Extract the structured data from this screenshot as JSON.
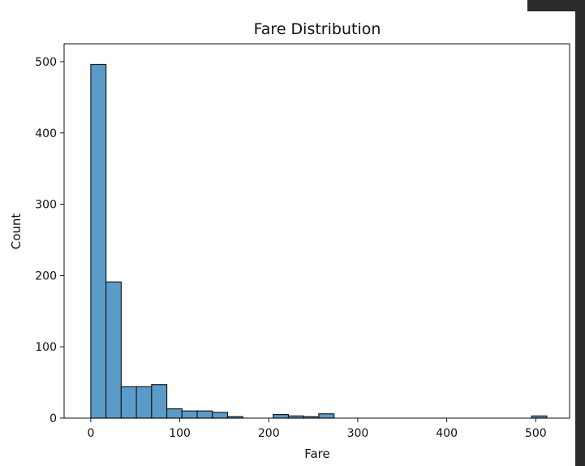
{
  "chart_data": {
    "type": "bar",
    "title": "Fare Distribution",
    "xlabel": "Fare",
    "ylabel": "Count",
    "xlim": [
      -30,
      538
    ],
    "ylim": [
      0,
      525
    ],
    "x_ticks": [
      0,
      100,
      200,
      300,
      400,
      500
    ],
    "y_ticks": [
      0,
      100,
      200,
      300,
      400,
      500
    ],
    "bin_width": 17.08,
    "bin_start": 0,
    "values": [
      496,
      191,
      44,
      44,
      47,
      13,
      10,
      10,
      8,
      2,
      0,
      0,
      5,
      3,
      2,
      6,
      0,
      0,
      0,
      0,
      0,
      0,
      0,
      0,
      0,
      0,
      0,
      0,
      0,
      3
    ],
    "bar_color": "#5b9bc9",
    "edge_color": "#1a1a1a",
    "grid": false,
    "legend": "none"
  }
}
